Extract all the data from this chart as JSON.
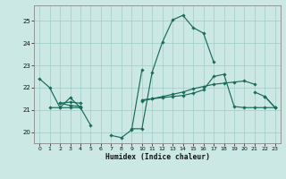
{
  "bg_color": "#cce8e4",
  "grid_color": "#a0ccc8",
  "line_color": "#1a6b5a",
  "xlabel": "Humidex (Indice chaleur)",
  "xlim": [
    -0.5,
    23.5
  ],
  "ylim": [
    19.5,
    25.7
  ],
  "yticks": [
    20,
    21,
    22,
    23,
    24,
    25
  ],
  "xticks": [
    0,
    1,
    2,
    3,
    4,
    5,
    6,
    7,
    8,
    9,
    10,
    11,
    12,
    13,
    14,
    15,
    16,
    17,
    18,
    19,
    20,
    21,
    22,
    23
  ],
  "series": [
    [
      22.4,
      22.0,
      21.1,
      21.1,
      21.1,
      20.3,
      null,
      19.85,
      19.75,
      20.1,
      22.8,
      null,
      null,
      null,
      null,
      null,
      null,
      null,
      null,
      null,
      null,
      21.8,
      21.6,
      21.1
    ],
    [
      null,
      null,
      21.3,
      21.2,
      21.15,
      null,
      null,
      null,
      null,
      20.15,
      20.15,
      22.7,
      24.05,
      25.05,
      25.25,
      24.7,
      24.45,
      23.15,
      null,
      null,
      null,
      null,
      21.6,
      21.1
    ],
    [
      null,
      21.1,
      21.1,
      21.55,
      21.1,
      null,
      null,
      null,
      null,
      null,
      21.45,
      21.5,
      21.55,
      21.6,
      21.65,
      21.75,
      21.9,
      22.5,
      22.6,
      21.15,
      21.1,
      21.1,
      21.1,
      21.1
    ],
    [
      null,
      null,
      21.3,
      21.35,
      21.3,
      null,
      null,
      null,
      null,
      null,
      21.4,
      21.5,
      21.6,
      21.7,
      21.8,
      21.95,
      22.05,
      22.15,
      22.2,
      22.25,
      22.3,
      22.15,
      null,
      null
    ]
  ]
}
